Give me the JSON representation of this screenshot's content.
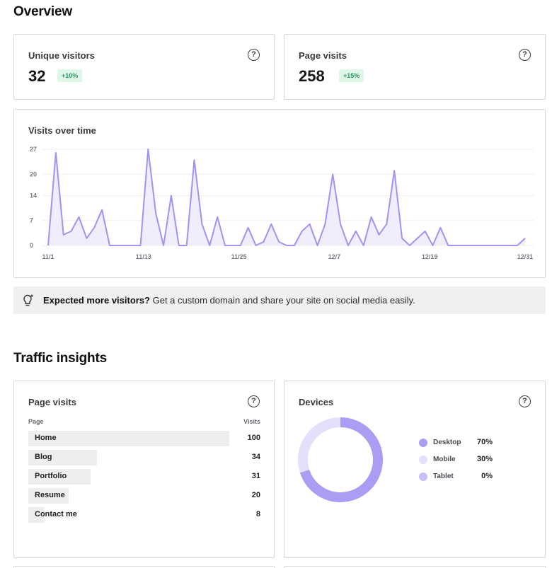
{
  "overview": {
    "title": "Overview",
    "unique_visitors": {
      "label": "Unique visitors",
      "value": "32",
      "change": "+10%"
    },
    "page_visits": {
      "label": "Page visits",
      "value": "258",
      "change": "+15%"
    }
  },
  "help_icon_glyph": "?",
  "visits_chart": {
    "title": "Visits over time",
    "chart_data": {
      "type": "area",
      "x_ticks": [
        "11/1",
        "11/13",
        "11/25",
        "12/7",
        "12/19",
        "12/31"
      ],
      "y_ticks": [
        "27",
        "20",
        "14",
        "7",
        "0"
      ],
      "ylim": [
        0,
        27
      ],
      "grid": true,
      "color": "#a193f2",
      "fill": "#f0edfd",
      "values": [
        0,
        26,
        3,
        4,
        8,
        2,
        5,
        10,
        0,
        0,
        0,
        0,
        0,
        27,
        9,
        0,
        14,
        0,
        0,
        24,
        6,
        0,
        8,
        0,
        0,
        0,
        5,
        0,
        1,
        6,
        1,
        0,
        0,
        4,
        6,
        0,
        6,
        20,
        6,
        0,
        4,
        0,
        8,
        3,
        6,
        21,
        2,
        0,
        2,
        4,
        0,
        5,
        0,
        0,
        0,
        0,
        0,
        0,
        0,
        0,
        0,
        0,
        2
      ]
    }
  },
  "banner": {
    "bold": "Expected more visitors?",
    "text": " Get a custom domain and share your site on social media easily.",
    "icon": "lightbulb-icon"
  },
  "traffic": {
    "title": "Traffic insights",
    "page_visits": {
      "title": "Page visits",
      "col_page": "Page",
      "col_visits": "Visits",
      "rows": [
        {
          "label": "Home",
          "value": "100",
          "fraction": 1.0
        },
        {
          "label": "Blog",
          "value": "34",
          "fraction": 0.34
        },
        {
          "label": "Portfolio",
          "value": "31",
          "fraction": 0.31
        },
        {
          "label": "Resume",
          "value": "20",
          "fraction": 0.2
        },
        {
          "label": "Contact me",
          "value": "8",
          "fraction": 0.08
        }
      ]
    },
    "devices": {
      "title": "Devices",
      "chart_data": {
        "type": "pie",
        "labels": [
          "Desktop",
          "Mobile",
          "Tablet"
        ],
        "values": [
          70,
          30,
          0
        ],
        "display": [
          "70%",
          "30%",
          "0%"
        ],
        "colors": [
          "#ab9df3",
          "#e4e0fb",
          "#c8c0f7"
        ]
      }
    }
  }
}
